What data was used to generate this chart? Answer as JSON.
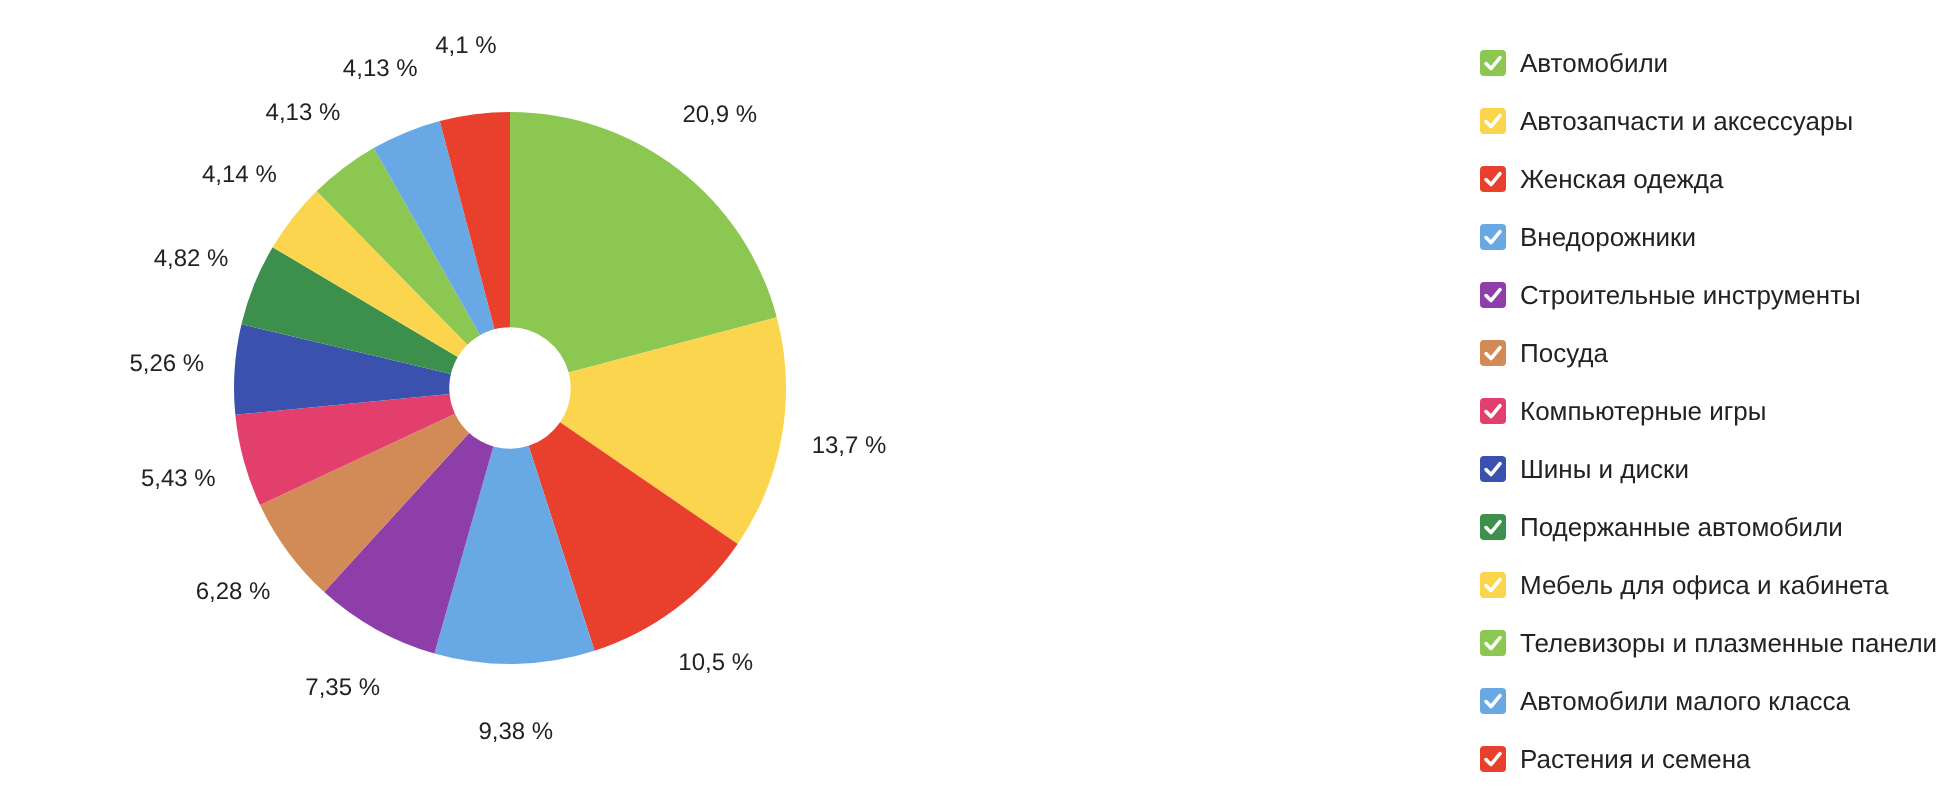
{
  "chart_data": {
    "type": "donut",
    "categories": [
      "Автомобили",
      "Автозапчасти и аксессуары",
      "Женская одежда",
      "Внедорожники",
      "Строительные инструменты",
      "Посуда",
      "Компьютерные игры",
      "Шины и диски",
      "Подержанные автомобили",
      "Мебель для офиса и кабинета",
      "Телевизоры и плазменные панели",
      "Автомобили малого класса",
      "Растения и семена"
    ],
    "values": [
      20.9,
      13.7,
      10.5,
      9.38,
      7.35,
      6.28,
      5.43,
      5.26,
      4.82,
      4.14,
      4.13,
      4.13,
      4.1
    ],
    "value_labels": [
      "20,9 %",
      "13,7 %",
      "10,5 %",
      "9,38 %",
      "7,35 %",
      "6,28 %",
      "5,43 %",
      "5,26 %",
      "4,82 %",
      "4,14 %",
      "4,13 %",
      "4,13 %",
      "4,1 %"
    ],
    "colors": [
      "#8cc751",
      "#fbd54e",
      "#e8402d",
      "#68a8e4",
      "#8e3ea8",
      "#d28b56",
      "#e33f6d",
      "#3a52ad",
      "#3d8f4c",
      "#fbd54e",
      "#8cc751",
      "#68a8e4",
      "#e8402d"
    ],
    "legend": "right"
  }
}
